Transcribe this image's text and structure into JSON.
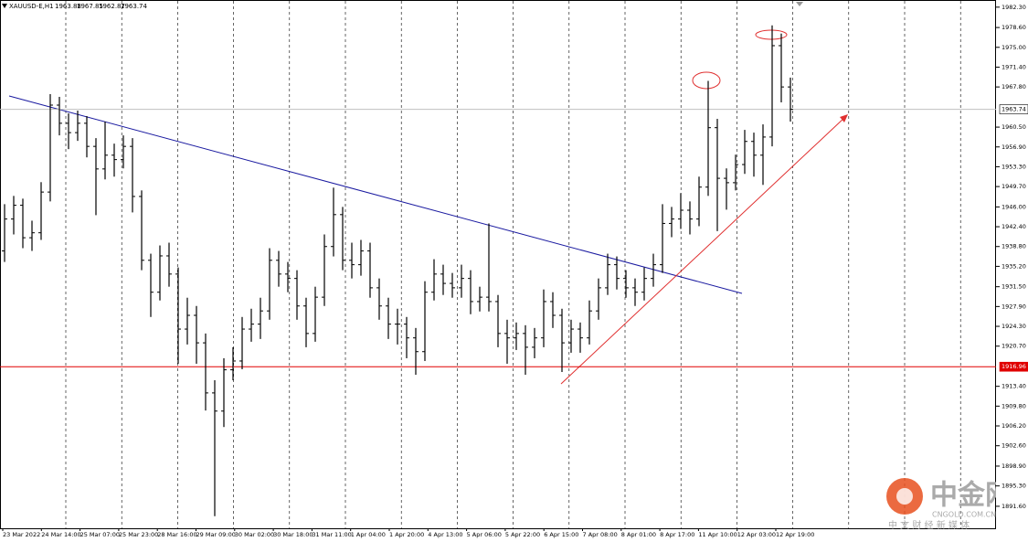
{
  "chart_data": {
    "type": "ohlc",
    "symbol": "XAUUSD-E,H1",
    "header_ohlc": [
      1963.88,
      1967.85,
      1962.87,
      1963.74
    ],
    "color": "#000000",
    "candles": [
      [
        1938.0,
        1946.5,
        1936.0,
        1943.8
      ],
      [
        1943.8,
        1948.0,
        1941.0,
        1946.3
      ],
      [
        1946.3,
        1947.5,
        1938.5,
        1940.4
      ],
      [
        1940.4,
        1943.5,
        1938.0,
        1941.3
      ],
      [
        1941.3,
        1950.5,
        1940.0,
        1948.7
      ],
      [
        1948.7,
        1966.5,
        1947.0,
        1964.5
      ],
      [
        1964.5,
        1966.0,
        1959.0,
        1961.2
      ],
      [
        1961.2,
        1963.0,
        1956.5,
        1959.5
      ],
      [
        1959.5,
        1963.5,
        1958.0,
        1961.2
      ],
      [
        1961.2,
        1962.5,
        1955.0,
        1957.0
      ],
      [
        1957.0,
        1958.5,
        1944.5,
        1952.9
      ],
      [
        1952.9,
        1961.5,
        1951.0,
        1955.4
      ],
      [
        1955.4,
        1957.5,
        1951.5,
        1954.6
      ],
      [
        1954.6,
        1959.0,
        1953.0,
        1957.0
      ],
      [
        1957.0,
        1958.5,
        1945.0,
        1947.9
      ],
      [
        1947.9,
        1949.0,
        1934.5,
        1936.3
      ],
      [
        1936.3,
        1937.5,
        1926.0,
        1930.5
      ],
      [
        1930.5,
        1939.0,
        1929.0,
        1937.1
      ],
      [
        1937.1,
        1939.5,
        1931.5,
        1933.8
      ],
      [
        1933.8,
        1935.0,
        1917.5,
        1923.8
      ],
      [
        1923.8,
        1929.5,
        1921.0,
        1926.3
      ],
      [
        1926.3,
        1928.0,
        1917.5,
        1921.3
      ],
      [
        1921.3,
        1923.0,
        1909.0,
        1912.2
      ],
      [
        1912.2,
        1914.5,
        1889.8,
        1908.9
      ],
      [
        1908.9,
        1918.5,
        1906.0,
        1916.4
      ],
      [
        1916.4,
        1920.5,
        1914.5,
        1918.0
      ],
      [
        1918.0,
        1926.0,
        1916.5,
        1923.8
      ],
      [
        1923.8,
        1927.5,
        1921.5,
        1924.7
      ],
      [
        1924.7,
        1929.5,
        1922.0,
        1927.1
      ],
      [
        1927.1,
        1938.5,
        1925.5,
        1936.3
      ],
      [
        1936.3,
        1938.0,
        1931.5,
        1933.8
      ],
      [
        1933.8,
        1936.0,
        1930.5,
        1933.0
      ],
      [
        1933.0,
        1934.5,
        1925.5,
        1928.0
      ],
      [
        1928.0,
        1929.5,
        1920.5,
        1923.0
      ],
      [
        1923.0,
        1931.5,
        1921.5,
        1929.6
      ],
      [
        1929.6,
        1941.0,
        1928.0,
        1938.8
      ],
      [
        1938.8,
        1949.5,
        1937.0,
        1944.6
      ],
      [
        1944.6,
        1946.0,
        1934.5,
        1936.3
      ],
      [
        1936.3,
        1939.5,
        1933.0,
        1935.5
      ],
      [
        1935.5,
        1940.0,
        1933.5,
        1938.0
      ],
      [
        1938.0,
        1939.5,
        1929.5,
        1931.3
      ],
      [
        1931.3,
        1933.0,
        1925.5,
        1928.0
      ],
      [
        1928.0,
        1929.5,
        1922.0,
        1924.7
      ],
      [
        1924.7,
        1927.5,
        1921.0,
        1924.7
      ],
      [
        1924.7,
        1926.0,
        1918.5,
        1922.2
      ],
      [
        1922.2,
        1924.0,
        1915.5,
        1919.7
      ],
      [
        1919.7,
        1932.5,
        1918.0,
        1930.5
      ],
      [
        1930.5,
        1936.5,
        1929.0,
        1933.8
      ],
      [
        1933.8,
        1935.5,
        1930.0,
        1932.1
      ],
      [
        1932.1,
        1934.0,
        1929.5,
        1931.3
      ],
      [
        1931.3,
        1935.5,
        1929.5,
        1933.0
      ],
      [
        1933.0,
        1934.5,
        1926.5,
        1928.8
      ],
      [
        1928.8,
        1931.5,
        1927.0,
        1929.6
      ],
      [
        1929.6,
        1943.0,
        1927.0,
        1928.8
      ],
      [
        1928.8,
        1930.0,
        1920.5,
        1923.0
      ],
      [
        1923.0,
        1925.5,
        1917.5,
        1922.2
      ],
      [
        1922.2,
        1925.0,
        1920.0,
        1923.0
      ],
      [
        1923.0,
        1924.5,
        1915.5,
        1920.5
      ],
      [
        1920.5,
        1924.0,
        1918.5,
        1922.2
      ],
      [
        1922.2,
        1931.0,
        1920.5,
        1928.8
      ],
      [
        1928.8,
        1930.5,
        1924.0,
        1926.3
      ],
      [
        1926.3,
        1927.5,
        1916.0,
        1921.3
      ],
      [
        1921.3,
        1925.5,
        1919.5,
        1923.8
      ],
      [
        1923.8,
        1925.0,
        1919.5,
        1922.2
      ],
      [
        1922.2,
        1929.0,
        1921.0,
        1927.1
      ],
      [
        1927.1,
        1933.0,
        1925.5,
        1931.3
      ],
      [
        1931.3,
        1937.5,
        1930.0,
        1935.5
      ],
      [
        1935.5,
        1937.0,
        1931.0,
        1933.0
      ],
      [
        1933.0,
        1934.5,
        1929.5,
        1931.3
      ],
      [
        1931.3,
        1933.0,
        1928.0,
        1930.5
      ],
      [
        1930.5,
        1935.0,
        1929.0,
        1933.0
      ],
      [
        1933.0,
        1937.5,
        1931.5,
        1935.5
      ],
      [
        1935.5,
        1946.5,
        1934.0,
        1943.0
      ],
      [
        1943.0,
        1946.0,
        1940.5,
        1943.8
      ],
      [
        1943.8,
        1948.5,
        1942.0,
        1945.4
      ],
      [
        1945.4,
        1947.0,
        1941.0,
        1943.8
      ],
      [
        1943.8,
        1951.5,
        1942.5,
        1949.6
      ],
      [
        1949.6,
        1968.9,
        1948.0,
        1960.4
      ],
      [
        1960.4,
        1962.0,
        1941.6,
        1951.2
      ],
      [
        1951.2,
        1953.0,
        1945.5,
        1950.4
      ],
      [
        1950.4,
        1955.5,
        1949.0,
        1953.7
      ],
      [
        1953.7,
        1960.0,
        1952.0,
        1957.9
      ],
      [
        1957.9,
        1959.5,
        1951.5,
        1955.4
      ],
      [
        1955.4,
        1961.0,
        1950.0,
        1958.7
      ],
      [
        1958.7,
        1979.0,
        1957.0,
        1975.3
      ],
      [
        1975.3,
        1977.5,
        1965.0,
        1967.8
      ],
      [
        1967.8,
        1969.5,
        1961.5,
        1963.74
      ]
    ],
    "x_labels": [
      "23 Mar 2022",
      "24 Mar 14:00",
      "25 Mar 07:00",
      "25 Mar 23:00",
      "28 Mar 16:00",
      "29 Mar 09:00",
      "30 Mar 02:00",
      "30 Mar 18:00",
      "31 Mar 11:00",
      "1 Apr 04:00",
      "1 Apr 20:00",
      "4 Apr 13:00",
      "5 Apr 06:00",
      "5 Apr 22:00",
      "6 Apr 15:00",
      "7 Apr 08:00",
      "8 Apr 01:00",
      "8 Apr 17:00",
      "11 Apr 10:00",
      "12 Apr 03:00",
      "12 Apr 19:00"
    ],
    "ylim": [
      1887.6,
      1983.6
    ],
    "yticks": [
      {
        "value": 1982.3,
        "label": "1982.30"
      },
      {
        "value": 1978.6,
        "label": "1978.60"
      },
      {
        "value": 1975,
        "label": "1975.00"
      },
      {
        "value": 1971.4,
        "label": "1971.40"
      },
      {
        "value": 1967.8,
        "label": "1967.80"
      },
      {
        "value": 1960.5,
        "label": "1960.50"
      },
      {
        "value": 1956.9,
        "label": "1956.90"
      },
      {
        "value": 1953.3,
        "label": "1953.30"
      },
      {
        "value": 1949.7,
        "label": "1949.70"
      },
      {
        "value": 1946,
        "label": "1946.00"
      },
      {
        "value": 1942.4,
        "label": "1942.40"
      },
      {
        "value": 1938.8,
        "label": "1938.80"
      },
      {
        "value": 1935.2,
        "label": "1935.20"
      },
      {
        "value": 1931.5,
        "label": "1931.50"
      },
      {
        "value": 1927.9,
        "label": "1927.90"
      },
      {
        "value": 1924.3,
        "label": "1924.30"
      },
      {
        "value": 1920.7,
        "label": "1920.70"
      },
      {
        "value": 1913.4,
        "label": "1913.40"
      },
      {
        "value": 1909.8,
        "label": "1909.80"
      },
      {
        "value": 1906.2,
        "label": "1906.20"
      },
      {
        "value": 1902.6,
        "label": "1902.60"
      },
      {
        "value": 1898.9,
        "label": "1898.90"
      },
      {
        "value": 1895.3,
        "label": "1895.30"
      },
      {
        "value": 1891.6,
        "label": "1891.60"
      }
    ],
    "levels": [
      {
        "value": 1916.96,
        "color": "#e00000"
      },
      {
        "value": 1963.74,
        "color": "#c0c0c0"
      }
    ],
    "watermark": {
      "brand": "中金网",
      "site": "CNGOLD.COM.CN",
      "tagline": "中 文 财 经 新 媒 体"
    }
  }
}
